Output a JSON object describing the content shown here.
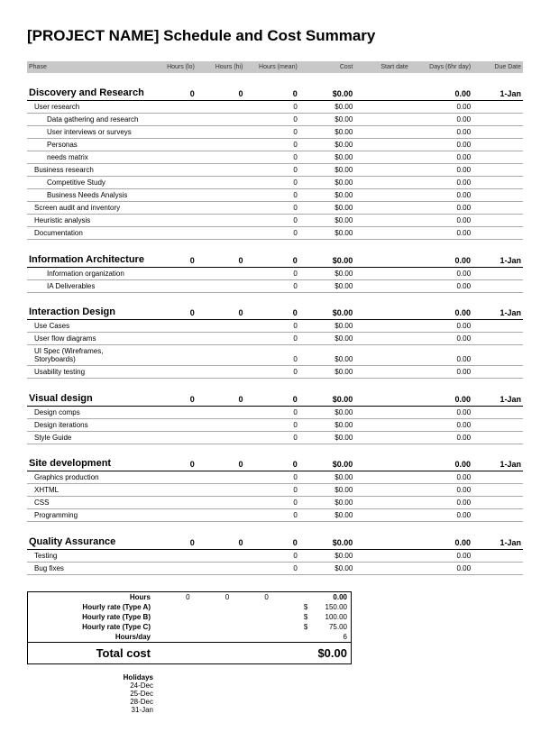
{
  "title": "[PROJECT NAME] Schedule and Cost Summary",
  "columns": [
    "Phase",
    "Hours (lo)",
    "Hours (hi)",
    "Hours (mean)",
    "Cost",
    "Start date",
    "Days (6hr day)",
    "Due Date"
  ],
  "sections": [
    {
      "name": "Discovery and Research",
      "totals": {
        "lo": "0",
        "hi": "0",
        "mean": "0",
        "cost": "$0.00",
        "start": "",
        "days": "0.00",
        "due": "1-Jan"
      },
      "rows": [
        {
          "indent": 0,
          "name": "User research",
          "mean": "0",
          "cost": "$0.00",
          "days": "0.00"
        },
        {
          "indent": 1,
          "name": "Data gathering and research",
          "mean": "0",
          "cost": "$0.00",
          "days": "0.00"
        },
        {
          "indent": 1,
          "name": "User interviews or surveys",
          "mean": "0",
          "cost": "$0.00",
          "days": "0.00"
        },
        {
          "indent": 1,
          "name": "Personas",
          "mean": "0",
          "cost": "$0.00",
          "days": "0.00"
        },
        {
          "indent": 1,
          "name": "needs matrix",
          "mean": "0",
          "cost": "$0.00",
          "days": "0.00"
        },
        {
          "indent": 0,
          "name": "Business research",
          "mean": "0",
          "cost": "$0.00",
          "days": "0.00"
        },
        {
          "indent": 1,
          "name": "Competitive Study",
          "mean": "0",
          "cost": "$0.00",
          "days": "0.00"
        },
        {
          "indent": 1,
          "name": "Business Needs Analysis",
          "mean": "0",
          "cost": "$0.00",
          "days": "0.00"
        },
        {
          "indent": 0,
          "name": "Screen audit and inventory",
          "mean": "0",
          "cost": "$0.00",
          "days": "0.00"
        },
        {
          "indent": 0,
          "name": "Heuristic analysis",
          "mean": "0",
          "cost": "$0.00",
          "days": "0.00"
        },
        {
          "indent": 0,
          "name": "Documentation",
          "mean": "0",
          "cost": "$0.00",
          "days": "0.00"
        }
      ]
    },
    {
      "name": "Information Architecture",
      "totals": {
        "lo": "0",
        "hi": "0",
        "mean": "0",
        "cost": "$0.00",
        "start": "",
        "days": "0.00",
        "due": "1-Jan"
      },
      "rows": [
        {
          "indent": 1,
          "name": "Information organization",
          "mean": "0",
          "cost": "$0.00",
          "days": "0.00"
        },
        {
          "indent": 1,
          "name": "IA Deliverables",
          "mean": "0",
          "cost": "$0.00",
          "days": "0.00"
        }
      ]
    },
    {
      "name": "Interaction Design",
      "totals": {
        "lo": "0",
        "hi": "0",
        "mean": "0",
        "cost": "$0.00",
        "start": "",
        "days": "0.00",
        "due": "1-Jan"
      },
      "rows": [
        {
          "indent": 0,
          "name": "Use Cases",
          "mean": "0",
          "cost": "$0.00",
          "days": "0.00"
        },
        {
          "indent": 0,
          "name": "User flow diagrams",
          "mean": "0",
          "cost": "$0.00",
          "days": "0.00"
        },
        {
          "indent": 0,
          "name": "UI Spec (Wireframes, Storyboards)",
          "mean": "0",
          "cost": "$0.00",
          "days": "0.00"
        },
        {
          "indent": 0,
          "name": "Usability testing",
          "mean": "0",
          "cost": "$0.00",
          "days": "0.00"
        }
      ]
    },
    {
      "name": "Visual design",
      "totals": {
        "lo": "0",
        "hi": "0",
        "mean": "0",
        "cost": "$0.00",
        "start": "",
        "days": "0.00",
        "due": "1-Jan"
      },
      "rows": [
        {
          "indent": 0,
          "name": "Design comps",
          "mean": "0",
          "cost": "$0.00",
          "days": "0.00"
        },
        {
          "indent": 0,
          "name": "Design iterations",
          "mean": "0",
          "cost": "$0.00",
          "days": "0.00"
        },
        {
          "indent": 0,
          "name": "Style Guide",
          "mean": "0",
          "cost": "$0.00",
          "days": "0.00"
        }
      ]
    },
    {
      "name": "Site development",
      "totals": {
        "lo": "0",
        "hi": "0",
        "mean": "0",
        "cost": "$0.00",
        "start": "",
        "days": "0.00",
        "due": "1-Jan"
      },
      "rows": [
        {
          "indent": 0,
          "name": "Graphics production",
          "mean": "0",
          "cost": "$0.00",
          "days": "0.00"
        },
        {
          "indent": 0,
          "name": "XHTML",
          "mean": "0",
          "cost": "$0.00",
          "days": "0.00"
        },
        {
          "indent": 0,
          "name": "CSS",
          "mean": "0",
          "cost": "$0.00",
          "days": "0.00"
        },
        {
          "indent": 0,
          "name": "Programming",
          "mean": "0",
          "cost": "$0.00",
          "days": "0.00"
        }
      ]
    },
    {
      "name": "Quality Assurance",
      "totals": {
        "lo": "0",
        "hi": "0",
        "mean": "0",
        "cost": "$0.00",
        "start": "",
        "days": "0.00",
        "due": "1-Jan"
      },
      "rows": [
        {
          "indent": 0,
          "name": "Testing",
          "mean": "0",
          "cost": "$0.00",
          "days": "0.00"
        },
        {
          "indent": 0,
          "name": "Bug fixes",
          "mean": "0",
          "cost": "$0.00",
          "days": "0.00"
        }
      ]
    }
  ],
  "summary": {
    "hours_label": "Hours",
    "hours_lo": "0",
    "hours_hi": "0",
    "hours_mean": "0",
    "hours_cost": "0.00",
    "rate_a_label": "Hourly rate (Type A)",
    "rate_a_cur": "$",
    "rate_a_val": "150.00",
    "rate_b_label": "Hourly rate (Type B)",
    "rate_b_cur": "$",
    "rate_b_val": "100.00",
    "rate_c_label": "Hourly rate (Type C)",
    "rate_c_cur": "$",
    "rate_c_val": "75.00",
    "hpd_label": "Hours/day",
    "hpd_val": "6",
    "total_label": "Total cost",
    "total_val": "$0.00"
  },
  "holidays": {
    "label": "Holidays",
    "dates": [
      "24-Dec",
      "25-Dec",
      "28-Dec",
      "31-Jan"
    ]
  }
}
